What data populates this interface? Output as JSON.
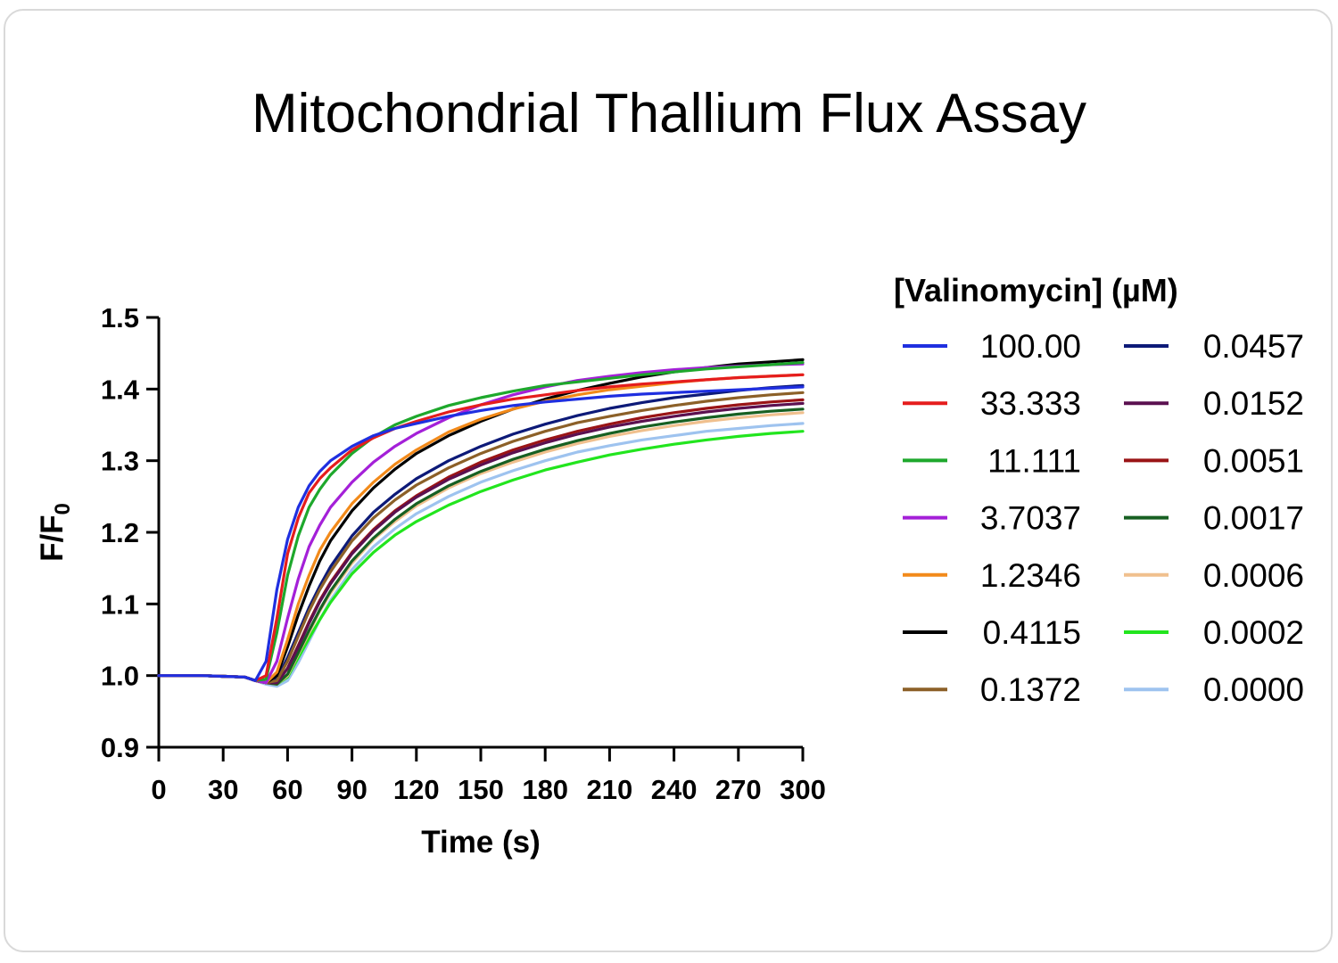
{
  "chart_data": {
    "type": "line",
    "title": "Mitochondrial Thallium Flux Assay",
    "xlabel": "Time (s)",
    "ylabel_main": "F/F",
    "ylabel_sub": "0",
    "xlim": [
      0,
      300
    ],
    "ylim": [
      0.9,
      1.5
    ],
    "xticks": [
      0,
      30,
      60,
      90,
      120,
      150,
      180,
      210,
      240,
      270,
      300
    ],
    "yticks": [
      "0.9",
      "1.0",
      "1.1",
      "1.2",
      "1.3",
      "1.4",
      "1.5"
    ],
    "grid": false,
    "legend_title": "[Valinomycin] (µM)",
    "legend_position": "right",
    "x": [
      0,
      10,
      20,
      30,
      40,
      45,
      50,
      55,
      60,
      65,
      70,
      75,
      80,
      90,
      100,
      110,
      120,
      135,
      150,
      165,
      180,
      195,
      210,
      225,
      240,
      255,
      270,
      285,
      300
    ],
    "series": [
      {
        "name": "100.00",
        "color": "#1f2fe0",
        "values": [
          1.0,
          1.0,
          1.0,
          0.999,
          0.998,
          0.993,
          1.02,
          1.12,
          1.19,
          1.235,
          1.265,
          1.285,
          1.3,
          1.32,
          1.335,
          1.345,
          1.352,
          1.362,
          1.37,
          1.377,
          1.382,
          1.386,
          1.39,
          1.393,
          1.395,
          1.397,
          1.399,
          1.401,
          1.403
        ]
      },
      {
        "name": "33.333",
        "color": "#e51d1d",
        "values": [
          1.0,
          1.0,
          1.0,
          0.999,
          0.998,
          0.993,
          1.0,
          1.08,
          1.17,
          1.22,
          1.255,
          1.275,
          1.29,
          1.315,
          1.332,
          1.345,
          1.355,
          1.368,
          1.378,
          1.386,
          1.392,
          1.398,
          1.403,
          1.407,
          1.41,
          1.413,
          1.416,
          1.418,
          1.42
        ]
      },
      {
        "name": "11.111",
        "color": "#1ea82c",
        "values": [
          1.0,
          1.0,
          1.0,
          0.999,
          0.998,
          0.993,
          0.995,
          1.06,
          1.14,
          1.195,
          1.235,
          1.26,
          1.28,
          1.31,
          1.333,
          1.35,
          1.362,
          1.377,
          1.388,
          1.397,
          1.405,
          1.41,
          1.415,
          1.42,
          1.424,
          1.428,
          1.431,
          1.434,
          1.437
        ]
      },
      {
        "name": "3.7037",
        "color": "#a420d8",
        "values": [
          1.0,
          1.0,
          1.0,
          0.999,
          0.998,
          0.993,
          0.99,
          1.02,
          1.08,
          1.135,
          1.18,
          1.21,
          1.235,
          1.27,
          1.298,
          1.32,
          1.338,
          1.36,
          1.378,
          1.392,
          1.403,
          1.412,
          1.418,
          1.423,
          1.427,
          1.43,
          1.432,
          1.434,
          1.435
        ]
      },
      {
        "name": "1.2346",
        "color": "#f28a1a",
        "values": [
          1.0,
          1.0,
          1.0,
          0.999,
          0.998,
          0.993,
          0.99,
          1.005,
          1.05,
          1.1,
          1.14,
          1.175,
          1.2,
          1.24,
          1.27,
          1.295,
          1.315,
          1.34,
          1.358,
          1.372,
          1.383,
          1.392,
          1.399,
          1.404,
          1.409,
          1.413,
          1.416,
          1.418,
          1.42
        ]
      },
      {
        "name": "0.4115",
        "color": "#000000",
        "values": [
          1.0,
          1.0,
          1.0,
          0.999,
          0.998,
          0.993,
          0.99,
          1.0,
          1.04,
          1.085,
          1.125,
          1.16,
          1.188,
          1.23,
          1.262,
          1.288,
          1.31,
          1.335,
          1.355,
          1.372,
          1.386,
          1.398,
          1.408,
          1.417,
          1.424,
          1.43,
          1.435,
          1.438,
          1.441
        ]
      },
      {
        "name": "0.1372",
        "color": "#8c6028",
        "values": [
          1.0,
          1.0,
          1.0,
          0.999,
          0.998,
          0.993,
          0.99,
          0.993,
          1.02,
          1.055,
          1.09,
          1.12,
          1.145,
          1.188,
          1.22,
          1.245,
          1.266,
          1.29,
          1.31,
          1.327,
          1.341,
          1.353,
          1.362,
          1.37,
          1.377,
          1.383,
          1.388,
          1.392,
          1.395
        ]
      },
      {
        "name": "0.0457",
        "color": "#0d1a78",
        "values": [
          1.0,
          1.0,
          1.0,
          0.999,
          0.998,
          0.993,
          0.99,
          0.995,
          1.025,
          1.06,
          1.095,
          1.125,
          1.152,
          1.195,
          1.228,
          1.253,
          1.275,
          1.3,
          1.32,
          1.337,
          1.351,
          1.363,
          1.373,
          1.381,
          1.388,
          1.393,
          1.398,
          1.402,
          1.405
        ]
      },
      {
        "name": "0.0152",
        "color": "#5b1050",
        "values": [
          1.0,
          1.0,
          1.0,
          0.999,
          0.998,
          0.993,
          0.99,
          0.99,
          1.01,
          1.04,
          1.073,
          1.103,
          1.128,
          1.17,
          1.202,
          1.228,
          1.249,
          1.274,
          1.294,
          1.311,
          1.325,
          1.337,
          1.347,
          1.355,
          1.362,
          1.368,
          1.373,
          1.377,
          1.38
        ]
      },
      {
        "name": "0.0051",
        "color": "#9a1416",
        "values": [
          1.0,
          1.0,
          1.0,
          0.999,
          0.998,
          0.993,
          0.99,
          0.99,
          1.01,
          1.042,
          1.075,
          1.105,
          1.13,
          1.172,
          1.204,
          1.23,
          1.251,
          1.277,
          1.298,
          1.315,
          1.329,
          1.341,
          1.351,
          1.36,
          1.367,
          1.373,
          1.378,
          1.382,
          1.385
        ]
      },
      {
        "name": "0.0017",
        "color": "#176022",
        "values": [
          1.0,
          1.0,
          1.0,
          0.999,
          0.998,
          0.993,
          0.99,
          0.988,
          1.002,
          1.032,
          1.063,
          1.092,
          1.118,
          1.16,
          1.192,
          1.218,
          1.24,
          1.265,
          1.285,
          1.302,
          1.316,
          1.328,
          1.338,
          1.347,
          1.354,
          1.36,
          1.365,
          1.369,
          1.372
        ]
      },
      {
        "name": "0.0006",
        "color": "#f0c08e",
        "values": [
          1.0,
          1.0,
          1.0,
          0.999,
          0.998,
          0.993,
          0.99,
          0.988,
          1.0,
          1.03,
          1.06,
          1.09,
          1.115,
          1.157,
          1.19,
          1.215,
          1.237,
          1.262,
          1.282,
          1.298,
          1.312,
          1.324,
          1.334,
          1.342,
          1.349,
          1.355,
          1.36,
          1.364,
          1.367
        ]
      },
      {
        "name": "0.0002",
        "color": "#22e51e",
        "values": [
          1.0,
          1.0,
          1.0,
          0.999,
          0.998,
          0.993,
          0.99,
          0.988,
          0.998,
          1.025,
          1.052,
          1.078,
          1.102,
          1.142,
          1.172,
          1.196,
          1.215,
          1.238,
          1.257,
          1.273,
          1.287,
          1.298,
          1.308,
          1.316,
          1.323,
          1.329,
          1.334,
          1.338,
          1.341
        ]
      },
      {
        "name": "0.0000",
        "color": "#9ec3ef",
        "values": [
          1.0,
          1.0,
          1.0,
          0.999,
          0.998,
          0.993,
          0.988,
          0.985,
          0.993,
          1.018,
          1.048,
          1.078,
          1.105,
          1.148,
          1.18,
          1.205,
          1.226,
          1.25,
          1.27,
          1.286,
          1.3,
          1.312,
          1.321,
          1.329,
          1.335,
          1.341,
          1.345,
          1.349,
          1.352
        ]
      }
    ]
  }
}
